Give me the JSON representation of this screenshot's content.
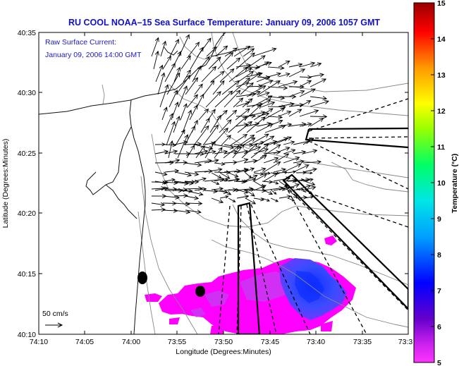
{
  "title": "RU COOL  NOAA–15  Sea Surface Temperature:  January 09, 2006 1057 GMT",
  "annotation": {
    "line1": "Raw Surface Current:",
    "line2": "January 09, 2006 14:00 GMT"
  },
  "scale": {
    "label": "50 cm/s"
  },
  "axes": {
    "xlabel": "Longitude (Degrees:Minutes)",
    "ylabel": "Latitude (Degrees:Minutes)",
    "xticks": [
      "74:10",
      "74:05",
      "74:00",
      "73:55",
      "73:50",
      "73:45",
      "73:40",
      "73:35",
      "73:3"
    ],
    "yticks": [
      "40:35",
      "40:30",
      "40:25",
      "40:20",
      "40:15",
      "40:10"
    ]
  },
  "colorbar": {
    "label": "Temperature (°C)",
    "ticks": [
      "15",
      "14",
      "13",
      "12",
      "11",
      "10",
      "9",
      "8",
      "7",
      "6",
      "5"
    ],
    "range": [
      5,
      15
    ],
    "colors": [
      "#ff33ff",
      "#6600cc",
      "#0000ff",
      "#00bfff",
      "#00ff99",
      "#66ff00",
      "#ffff00",
      "#ff9900",
      "#ff0000",
      "#800000"
    ]
  },
  "colors": {
    "title": "#1010cc",
    "annotation": "#1a1acc",
    "warm_water": "#ff00ff",
    "cold_water": "#1e4bff"
  }
}
